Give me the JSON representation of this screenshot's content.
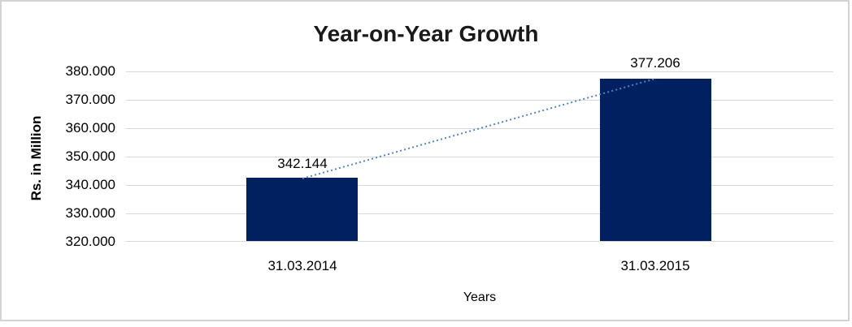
{
  "frame": {
    "border_color": "#d3d3d3",
    "background": "#ffffff"
  },
  "chart_data": {
    "type": "bar",
    "title": "Year-on-Year Growth",
    "categories": [
      "31.03.2014",
      "31.03.2015"
    ],
    "values": [
      342.144,
      377.206
    ],
    "value_labels": [
      "342.144",
      "377.206"
    ],
    "xlabel": "Years",
    "ylabel": "Rs. in Million",
    "ylim": [
      320,
      380
    ],
    "ytick_step": 10,
    "ytick_labels": [
      "380.000",
      "370.000",
      "360.000",
      "350.000",
      "340.000",
      "330.000",
      "320.000"
    ],
    "grid": true,
    "legend": false,
    "bar_color": "#002060",
    "gridline_color": "#d9d9d9",
    "trendline": {
      "style": "dotted",
      "color": "#4f86c6",
      "connects": "tops of bars"
    }
  }
}
